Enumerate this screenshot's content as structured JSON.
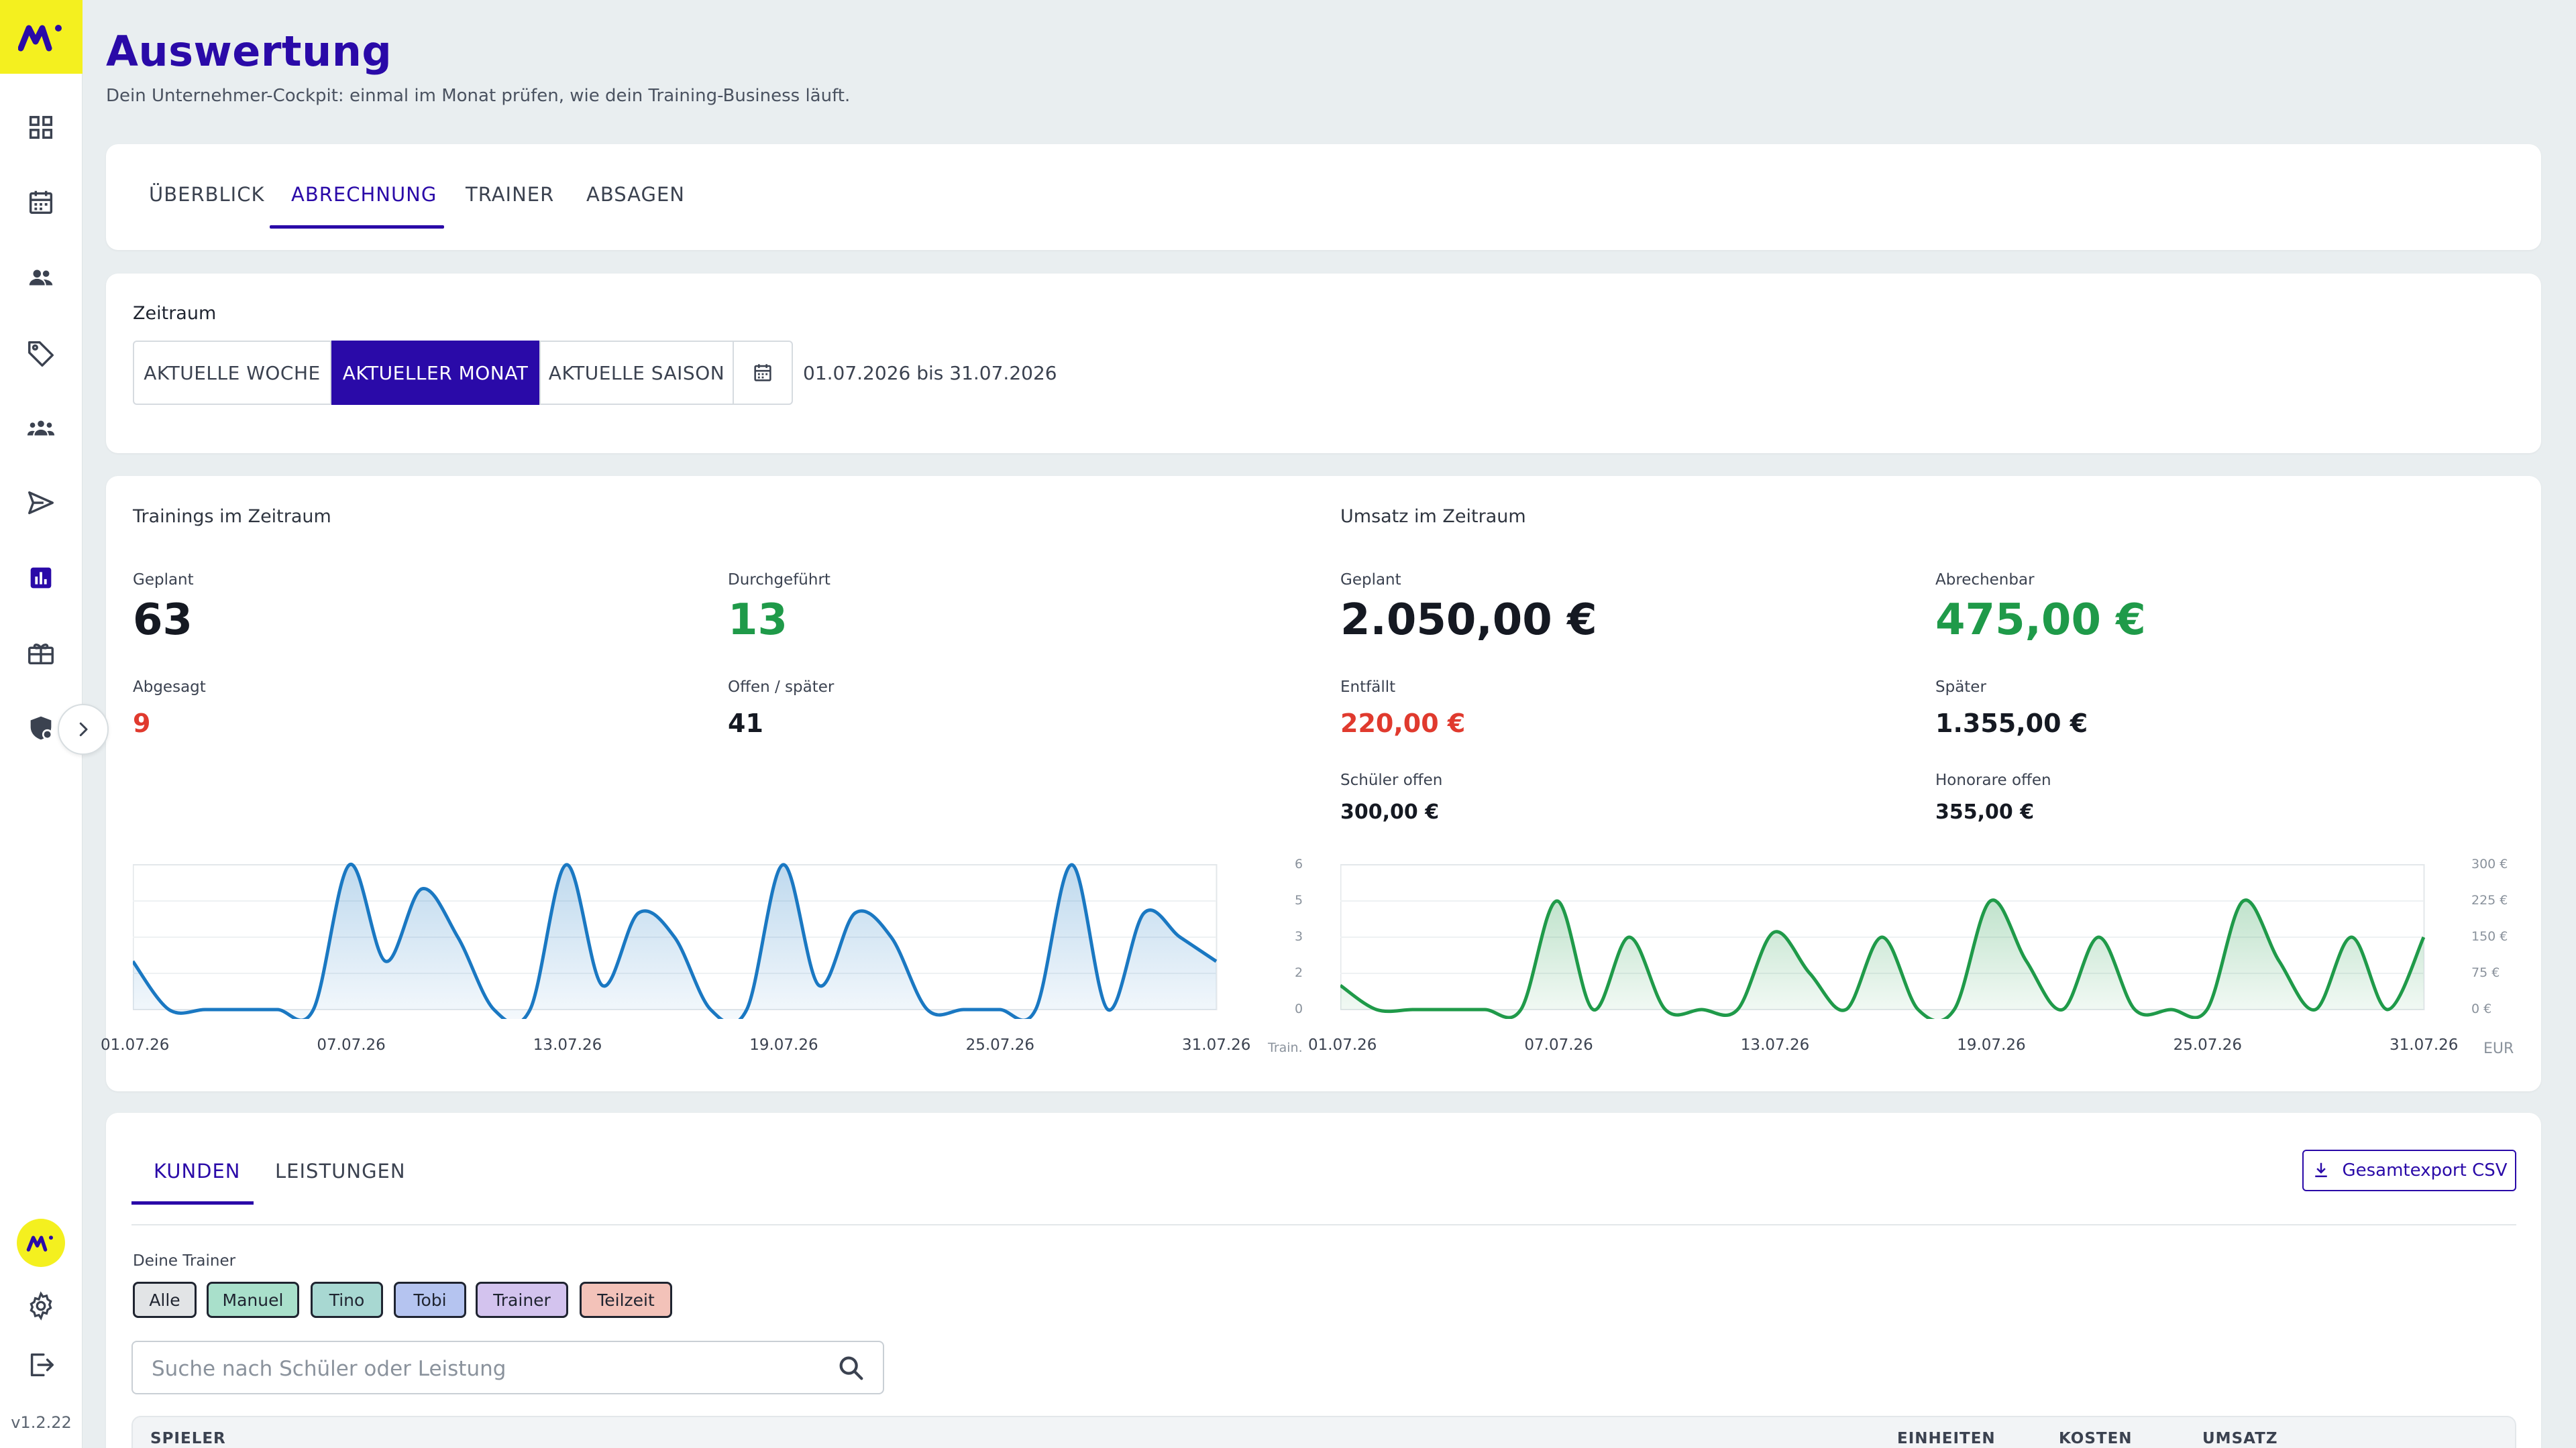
{
  "app": {
    "version": "v1.2.22",
    "colors": {
      "brand": "#2a0aa8",
      "accent_yellow": "#f4f01f",
      "positive": "#1f9a49",
      "negative": "#e03a2e",
      "chart_blue": "#1a78c2",
      "chart_green": "#1f9a49"
    }
  },
  "sidebar": {
    "items": [
      {
        "name": "dashboard-icon"
      },
      {
        "name": "calendar-icon"
      },
      {
        "name": "users-icon"
      },
      {
        "name": "tag-icon"
      },
      {
        "name": "groups-icon"
      },
      {
        "name": "send-icon"
      },
      {
        "name": "analytics-icon",
        "active": true
      },
      {
        "name": "gift-icon"
      },
      {
        "name": "shield-icon"
      }
    ],
    "bottom": [
      {
        "name": "settings-icon"
      },
      {
        "name": "logout-icon"
      }
    ]
  },
  "header": {
    "title": "Auswertung",
    "subtitle": "Dein Unternehmer-Cockpit: einmal im Monat prüfen, wie dein Training-Business läuft."
  },
  "tabs": [
    "ÜBERBLICK",
    "ABRECHNUNG",
    "TRAINER",
    "ABSAGEN"
  ],
  "active_tab": "ABRECHNUNG",
  "zeitraum": {
    "label": "Zeitraum",
    "options": [
      "AKTUELLE WOCHE",
      "AKTUELLER MONAT",
      "AKTUELLE SAISON"
    ],
    "selected": "AKTUELLER MONAT",
    "range_text": "01.07.2026 bis 31.07.2026"
  },
  "trainings": {
    "title": "Trainings im Zeitraum",
    "geplant_label": "Geplant",
    "geplant": "63",
    "durchgefuehrt_label": "Durchgeführt",
    "durchgefuehrt": "13",
    "abgesagt_label": "Abgesagt",
    "abgesagt": "9",
    "offen_label": "Offen / später",
    "offen": "41"
  },
  "umsatz": {
    "title": "Umsatz im Zeitraum",
    "geplant_label": "Geplant",
    "geplant": "2.050,00 €",
    "abrechenbar_label": "Abrechenbar",
    "abrechenbar": "475,00 €",
    "entfaellt_label": "Entfällt",
    "entfaellt": "220,00 €",
    "spaeter_label": "Später",
    "spaeter": "1.355,00 €",
    "schueler_offen_label": "Schüler offen",
    "schueler_offen": "300,00 €",
    "honorare_offen_label": "Honorare offen",
    "honorare_offen": "355,00 €"
  },
  "chart_data": [
    {
      "type": "area",
      "x_ticks": [
        "01.07.26",
        "07.07.26",
        "13.07.26",
        "19.07.26",
        "25.07.26",
        "31.07.26"
      ],
      "x": [
        "01.07.26",
        "02.07.26",
        "03.07.26",
        "04.07.26",
        "05.07.26",
        "06.07.26",
        "07.07.26",
        "08.07.26",
        "09.07.26",
        "10.07.26",
        "11.07.26",
        "12.07.26",
        "13.07.26",
        "14.07.26",
        "15.07.26",
        "16.07.26",
        "17.07.26",
        "18.07.26",
        "19.07.26",
        "20.07.26",
        "21.07.26",
        "22.07.26",
        "23.07.26",
        "24.07.26",
        "25.07.26",
        "26.07.26",
        "27.07.26",
        "28.07.26",
        "29.07.26",
        "30.07.26",
        "31.07.26"
      ],
      "values": [
        2,
        0,
        0,
        0,
        0,
        0,
        6,
        2,
        5,
        3,
        0,
        0,
        6,
        1,
        4,
        3,
        0,
        0,
        6,
        1,
        4,
        3,
        0,
        0,
        0,
        0,
        6,
        0,
        4,
        3,
        2
      ],
      "ylim": [
        0,
        6
      ],
      "color": "#1a78c2"
    },
    {
      "type": "area",
      "x_ticks": [
        "01.07.26",
        "07.07.26",
        "13.07.26",
        "19.07.26",
        "25.07.26",
        "31.07.26"
      ],
      "y_ticks_left": [
        "6",
        "5",
        "3",
        "2",
        "0"
      ],
      "y_ticks_right": [
        "300 €",
        "225 €",
        "150 €",
        "75 €",
        "0 €"
      ],
      "ylabel_left": "Train.",
      "ylabel_right": "EUR",
      "x": [
        "01.07.26",
        "02.07.26",
        "03.07.26",
        "04.07.26",
        "05.07.26",
        "06.07.26",
        "07.07.26",
        "08.07.26",
        "09.07.26",
        "10.07.26",
        "11.07.26",
        "12.07.26",
        "13.07.26",
        "14.07.26",
        "15.07.26",
        "16.07.26",
        "17.07.26",
        "18.07.26",
        "19.07.26",
        "20.07.26",
        "21.07.26",
        "22.07.26",
        "23.07.26",
        "24.07.26",
        "25.07.26",
        "26.07.26",
        "27.07.26",
        "28.07.26",
        "29.07.26",
        "30.07.26",
        "31.07.26"
      ],
      "values": [
        50,
        0,
        0,
        0,
        0,
        0,
        225,
        0,
        150,
        0,
        0,
        0,
        160,
        75,
        0,
        150,
        0,
        0,
        225,
        100,
        0,
        150,
        0,
        0,
        0,
        225,
        100,
        0,
        150,
        0,
        150
      ],
      "ylim": [
        0,
        300
      ],
      "color": "#1f9a49"
    }
  ],
  "bottom": {
    "tabs": [
      "KUNDEN",
      "LEISTUNGEN"
    ],
    "active_tab": "KUNDEN",
    "export_label": "Gesamtexport CSV",
    "trainer_label": "Deine Trainer",
    "chips": [
      {
        "label": "Alle",
        "color": "#e2e4e6"
      },
      {
        "label": "Manuel",
        "color": "#a9e0cb"
      },
      {
        "label": "Tino",
        "color": "#a8d8d2"
      },
      {
        "label": "Tobi",
        "color": "#b5c4f0"
      },
      {
        "label": "Trainer",
        "color": "#d3c3ee"
      },
      {
        "label": "Teilzeit",
        "color": "#f3c2b9"
      }
    ],
    "search_placeholder": "Suche nach Schüler oder Leistung",
    "columns": [
      "SPIELER",
      "EINHEITEN",
      "KOSTEN",
      "UMSATZ"
    ]
  }
}
